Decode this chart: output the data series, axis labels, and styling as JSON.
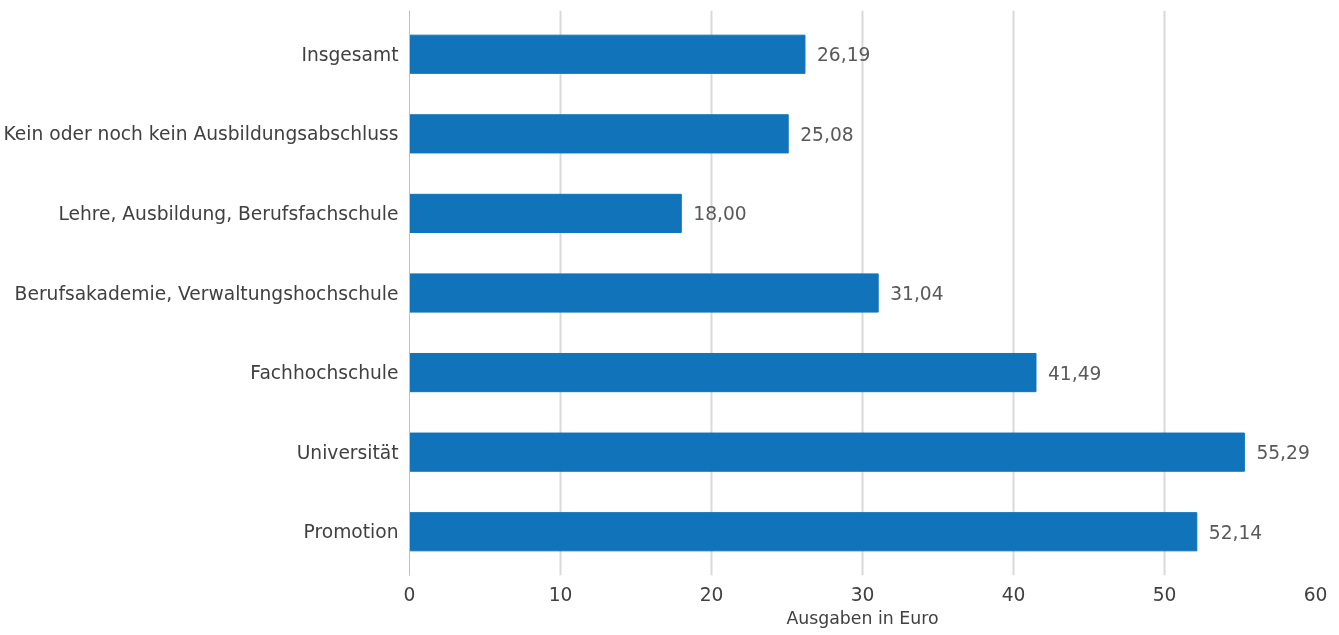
{
  "chart_data": {
    "type": "bar",
    "orientation": "horizontal",
    "xlabel": "Ausgaben in Euro",
    "categories": [
      "Insgesamt",
      "Kein oder noch kein Ausbildungsabschluss",
      "Lehre, Ausbildung, Berufsfachschule",
      "Berufsakademie, Verwaltungshochschule",
      "Fachhochschule",
      "Universität",
      "Promotion"
    ],
    "values": [
      26.19,
      25.08,
      18.0,
      31.04,
      41.49,
      55.29,
      52.14
    ],
    "value_labels": [
      "26,19",
      "25,08",
      "18,00",
      "31,04",
      "41,49",
      "55,29",
      "52,14"
    ],
    "color": "#1174bb",
    "xlim": [
      0,
      60
    ],
    "xticks": [
      0,
      10,
      20,
      30,
      40,
      50,
      60
    ],
    "grid": "x"
  }
}
